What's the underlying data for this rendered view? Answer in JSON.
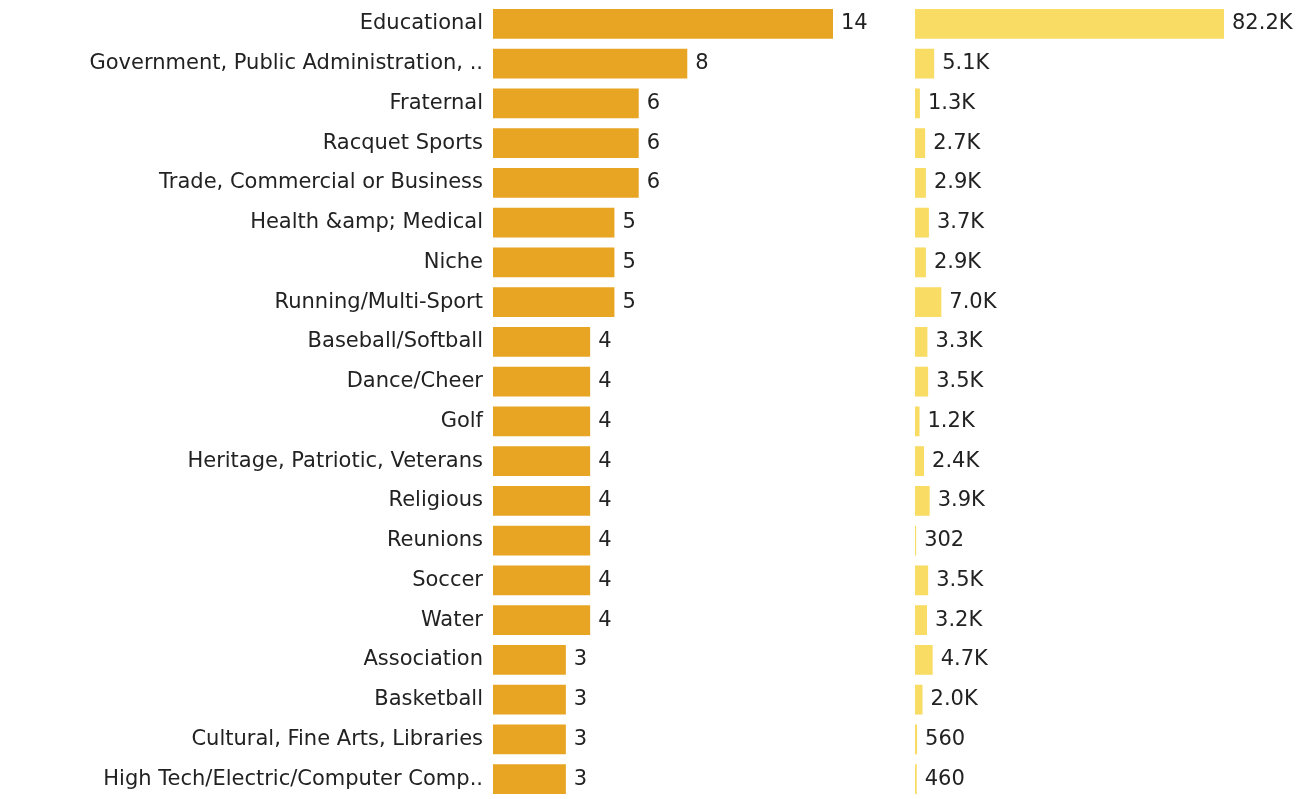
{
  "chart_data": [
    {
      "type": "bar",
      "orientation": "horizontal",
      "tick_labels": "y",
      "data_labels": true,
      "categories": [
        "Educational",
        "Government, Public Administration, ..",
        "Fraternal",
        "Racquet Sports",
        "Trade, Commercial or Business",
        "Health &amp; Medical",
        "Niche",
        "Running/Multi-Sport",
        "Baseball/Softball",
        "Dance/Cheer",
        "Golf",
        "Heritage, Patriotic, Veterans",
        "Religious",
        "Reunions",
        "Soccer",
        "Water",
        "Association",
        "Basketball",
        "Cultural, Fine Arts, Libraries",
        "High Tech/Electric/Computer Comp.."
      ],
      "series": [
        {
          "color": "#e8a523",
          "values": [
            14,
            8,
            6,
            6,
            6,
            5,
            5,
            5,
            4,
            4,
            4,
            4,
            4,
            4,
            4,
            4,
            3,
            3,
            3,
            3
          ]
        }
      ]
    },
    {
      "type": "bar",
      "orientation": "horizontal",
      "tick_labels": false,
      "categories": [
        null,
        null,
        null,
        null,
        null,
        null,
        null,
        null,
        null,
        null,
        null,
        null,
        null,
        null,
        null,
        null,
        null,
        null,
        null,
        null
      ],
      "series": [
        {
          "color": "#f8dc64",
          "values": [
            82200,
            5100,
            1300,
            2700,
            2900,
            3700,
            2900,
            7000,
            3300,
            3500,
            1200,
            2400,
            3900,
            302,
            3500,
            3200,
            4700,
            2000,
            560,
            460
          ],
          "value_labels": [
            "82.2K",
            "5.1K",
            "1.3K",
            "2.7K",
            "2.9K",
            "3.7K",
            "2.9K",
            "7.0K",
            "3.3K",
            "3.5K",
            "1.2K",
            "2.4K",
            "3.9K",
            "302",
            "3.5K",
            "3.2K",
            "4.7K",
            "2.0K",
            "560",
            "460"
          ]
        }
      ]
    }
  ]
}
